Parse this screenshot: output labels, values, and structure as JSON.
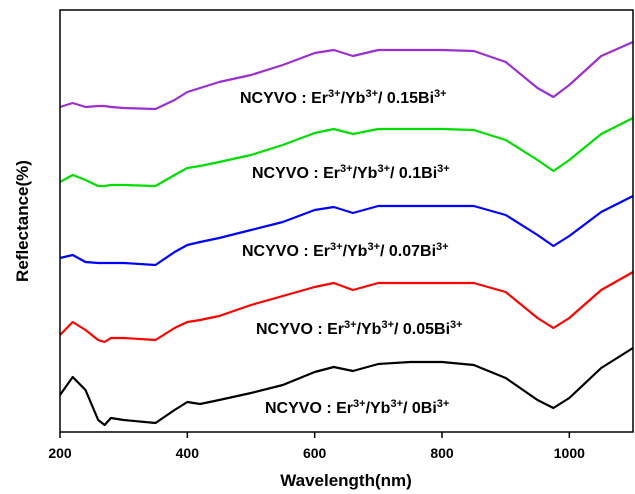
{
  "chart_data": {
    "type": "line",
    "xlabel": "Wavelength(nm)",
    "ylabel": "Reflectance(%)",
    "x": [
      200,
      220,
      240,
      260,
      270,
      280,
      300,
      350,
      380,
      400,
      420,
      450,
      500,
      550,
      600,
      630,
      660,
      700,
      750,
      800,
      850,
      900,
      950,
      975,
      1000,
      1050,
      1100
    ],
    "xlim": [
      200,
      1100
    ],
    "xticks": [
      200,
      400,
      600,
      800,
      1000
    ],
    "ylim": [
      0,
      422
    ],
    "series": [
      {
        "color": "#000000",
        "label": [
          {
            "text": "NCYVO : Er"
          },
          {
            "sup": "3+"
          },
          {
            "text": "/Yb"
          },
          {
            "sup": "3+"
          },
          {
            "text": "/ 0Bi"
          },
          {
            "sup": "3+"
          }
        ],
        "values": [
          37,
          55,
          42,
          12,
          7,
          14,
          12,
          9,
          22,
          30,
          28,
          32,
          39,
          47,
          60,
          65,
          61,
          68,
          70,
          70,
          67,
          54,
          32,
          24,
          34,
          64,
          84
        ]
      },
      {
        "color": "#ff0000",
        "label": [
          {
            "text": "NCYVO : Er"
          },
          {
            "sup": "3+"
          },
          {
            "text": "/Yb"
          },
          {
            "sup": "3+"
          },
          {
            "text": "/ 0.05Bi"
          },
          {
            "sup": "3+"
          }
        ],
        "values": [
          97,
          110,
          102,
          92,
          90,
          94,
          94,
          92,
          104,
          110,
          112,
          116,
          127,
          136,
          145,
          149,
          142,
          149,
          149,
          149,
          149,
          140,
          114,
          104,
          114,
          142,
          160
        ]
      },
      {
        "color": "#0000ff",
        "label": [
          {
            "text": "NCYVO : Er"
          },
          {
            "sup": "3+"
          },
          {
            "text": "/Yb"
          },
          {
            "sup": "3+"
          },
          {
            "text": "/ 0.07Bi"
          },
          {
            "sup": "3+"
          }
        ],
        "values": [
          174,
          177,
          170,
          169,
          169,
          169,
          169,
          167,
          180,
          187,
          190,
          194,
          202,
          210,
          222,
          225,
          219,
          226,
          226,
          226,
          226,
          217,
          197,
          186,
          196,
          220,
          236
        ]
      },
      {
        "color": "#00dd00",
        "label": [
          {
            "text": "NCYVO : Er"
          },
          {
            "sup": "3+"
          },
          {
            "text": "/Yb"
          },
          {
            "sup": "3+"
          },
          {
            "text": "/ 0.1Bi"
          },
          {
            "sup": "3+"
          }
        ],
        "values": [
          250,
          257,
          252,
          246,
          246,
          247,
          247,
          246,
          257,
          264,
          266,
          270,
          277,
          287,
          299,
          303,
          298,
          303,
          303,
          303,
          302,
          292,
          272,
          261,
          272,
          298,
          314
        ]
      },
      {
        "color": "#9b30d0",
        "label": [
          {
            "text": "NCYVO : Er"
          },
          {
            "sup": "3+"
          },
          {
            "text": "/Yb"
          },
          {
            "sup": "3+"
          },
          {
            "text": "/ 0.15Bi"
          },
          {
            "sup": "3+"
          }
        ],
        "values": [
          325,
          329,
          325,
          326,
          326,
          325,
          324,
          323,
          332,
          340,
          344,
          350,
          357,
          367,
          379,
          382,
          376,
          382,
          382,
          382,
          381,
          370,
          344,
          335,
          347,
          376,
          390
        ]
      }
    ]
  }
}
